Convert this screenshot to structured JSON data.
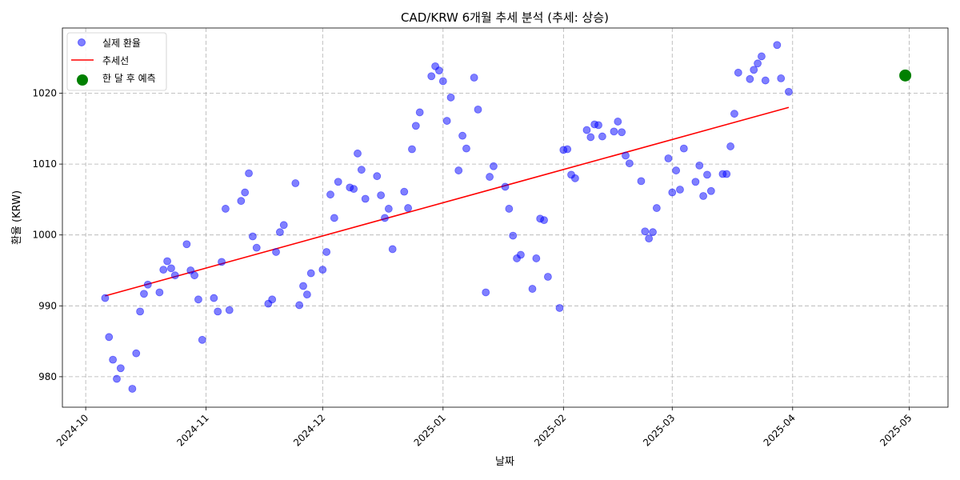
{
  "chart_data": {
    "type": "scatter",
    "title": "CAD/KRW 6개월 추세 분석 (추세: 상승)",
    "xlabel": "날짜",
    "ylabel": "환율 (KRW)",
    "xlim": [
      "2024-09-25",
      "2025-05-11"
    ],
    "ylim": [
      975.7,
      1029.2
    ],
    "x_ticks": [
      "2024-10",
      "2024-11",
      "2024-12",
      "2025-01",
      "2025-02",
      "2025-03",
      "2025-04",
      "2025-05"
    ],
    "x_tick_dates": [
      "2024-10-01",
      "2024-11-01",
      "2024-12-01",
      "2025-01-01",
      "2025-02-01",
      "2025-03-01",
      "2025-04-01",
      "2025-05-01"
    ],
    "y_ticks": [
      980,
      990,
      1000,
      1010,
      1020
    ],
    "grid": true,
    "legend_position": "top-left",
    "colors": {
      "actual": "#0000ff",
      "trend": "#ff0000",
      "forecast": "#008000"
    },
    "series": [
      {
        "name": "실제 환율",
        "kind": "scatter",
        "points": [
          [
            "2024-10-06",
            991.1
          ],
          [
            "2024-10-07",
            985.6
          ],
          [
            "2024-10-08",
            982.4
          ],
          [
            "2024-10-09",
            979.7
          ],
          [
            "2024-10-10",
            981.2
          ],
          [
            "2024-10-13",
            978.3
          ],
          [
            "2024-10-14",
            983.3
          ],
          [
            "2024-10-15",
            989.2
          ],
          [
            "2024-10-16",
            991.7
          ],
          [
            "2024-10-17",
            993.0
          ],
          [
            "2024-10-20",
            991.9
          ],
          [
            "2024-10-21",
            995.1
          ],
          [
            "2024-10-22",
            996.3
          ],
          [
            "2024-10-23",
            995.3
          ],
          [
            "2024-10-24",
            994.3
          ],
          [
            "2024-10-27",
            998.7
          ],
          [
            "2024-10-28",
            995.0
          ],
          [
            "2024-10-29",
            994.3
          ],
          [
            "2024-10-30",
            990.9
          ],
          [
            "2024-10-31",
            985.2
          ],
          [
            "2024-11-03",
            991.1
          ],
          [
            "2024-11-04",
            989.2
          ],
          [
            "2024-11-05",
            996.2
          ],
          [
            "2024-11-06",
            1003.7
          ],
          [
            "2024-11-07",
            989.4
          ],
          [
            "2024-11-10",
            1004.8
          ],
          [
            "2024-11-11",
            1006.0
          ],
          [
            "2024-11-12",
            1008.7
          ],
          [
            "2024-11-13",
            999.8
          ],
          [
            "2024-11-14",
            998.2
          ],
          [
            "2024-11-17",
            990.3
          ],
          [
            "2024-11-18",
            990.9
          ],
          [
            "2024-11-19",
            997.6
          ],
          [
            "2024-11-20",
            1000.4
          ],
          [
            "2024-11-21",
            1001.4
          ],
          [
            "2024-11-24",
            1007.3
          ],
          [
            "2024-11-25",
            990.1
          ],
          [
            "2024-11-26",
            992.8
          ],
          [
            "2024-11-27",
            991.6
          ],
          [
            "2024-11-28",
            994.6
          ],
          [
            "2024-12-01",
            995.1
          ],
          [
            "2024-12-02",
            997.6
          ],
          [
            "2024-12-03",
            1005.7
          ],
          [
            "2024-12-04",
            1002.4
          ],
          [
            "2024-12-05",
            1007.5
          ],
          [
            "2024-12-08",
            1006.7
          ],
          [
            "2024-12-09",
            1006.5
          ],
          [
            "2024-12-10",
            1011.5
          ],
          [
            "2024-12-11",
            1009.2
          ],
          [
            "2024-12-12",
            1005.1
          ],
          [
            "2024-12-15",
            1008.3
          ],
          [
            "2024-12-16",
            1005.6
          ],
          [
            "2024-12-17",
            1002.4
          ],
          [
            "2024-12-18",
            1003.7
          ],
          [
            "2024-12-19",
            998.0
          ],
          [
            "2024-12-22",
            1006.1
          ],
          [
            "2024-12-23",
            1003.8
          ],
          [
            "2024-12-24",
            1012.1
          ],
          [
            "2024-12-25",
            1015.4
          ],
          [
            "2024-12-26",
            1017.3
          ],
          [
            "2024-12-29",
            1022.4
          ],
          [
            "2024-12-30",
            1023.8
          ],
          [
            "2024-12-31",
            1023.2
          ],
          [
            "2025-01-01",
            1021.7
          ],
          [
            "2025-01-02",
            1016.1
          ],
          [
            "2025-01-03",
            1019.4
          ],
          [
            "2025-01-05",
            1009.1
          ],
          [
            "2025-01-06",
            1014.0
          ],
          [
            "2025-01-07",
            1012.2
          ],
          [
            "2025-01-09",
            1022.2
          ],
          [
            "2025-01-10",
            1017.7
          ],
          [
            "2025-01-12",
            991.9
          ],
          [
            "2025-01-13",
            1008.2
          ],
          [
            "2025-01-14",
            1009.7
          ],
          [
            "2025-01-17",
            1006.8
          ],
          [
            "2025-01-18",
            1003.7
          ],
          [
            "2025-01-19",
            999.9
          ],
          [
            "2025-01-20",
            996.7
          ],
          [
            "2025-01-21",
            997.2
          ],
          [
            "2025-01-24",
            992.4
          ],
          [
            "2025-01-25",
            996.7
          ],
          [
            "2025-01-26",
            1002.3
          ],
          [
            "2025-01-27",
            1002.1
          ],
          [
            "2025-01-28",
            994.1
          ],
          [
            "2025-01-31",
            989.7
          ],
          [
            "2025-02-01",
            1012.0
          ],
          [
            "2025-02-02",
            1012.1
          ],
          [
            "2025-02-03",
            1008.5
          ],
          [
            "2025-02-04",
            1008.0
          ],
          [
            "2025-02-07",
            1014.8
          ],
          [
            "2025-02-08",
            1013.8
          ],
          [
            "2025-02-09",
            1015.6
          ],
          [
            "2025-02-10",
            1015.5
          ],
          [
            "2025-02-11",
            1013.9
          ],
          [
            "2025-02-14",
            1014.6
          ],
          [
            "2025-02-15",
            1016.0
          ],
          [
            "2025-02-16",
            1014.5
          ],
          [
            "2025-02-17",
            1011.2
          ],
          [
            "2025-02-18",
            1010.1
          ],
          [
            "2025-02-21",
            1007.6
          ],
          [
            "2025-02-22",
            1000.5
          ],
          [
            "2025-02-23",
            999.5
          ],
          [
            "2025-02-24",
            1000.4
          ],
          [
            "2025-02-25",
            1003.8
          ],
          [
            "2025-02-28",
            1010.8
          ],
          [
            "2025-03-01",
            1006.0
          ],
          [
            "2025-03-02",
            1009.1
          ],
          [
            "2025-03-03",
            1006.4
          ],
          [
            "2025-03-04",
            1012.2
          ],
          [
            "2025-03-07",
            1007.5
          ],
          [
            "2025-03-08",
            1009.8
          ],
          [
            "2025-03-09",
            1005.5
          ],
          [
            "2025-03-10",
            1008.5
          ],
          [
            "2025-03-11",
            1006.2
          ],
          [
            "2025-03-14",
            1008.6
          ],
          [
            "2025-03-15",
            1008.6
          ],
          [
            "2025-03-16",
            1012.5
          ],
          [
            "2025-03-17",
            1017.1
          ],
          [
            "2025-03-18",
            1022.9
          ],
          [
            "2025-03-21",
            1022.0
          ],
          [
            "2025-03-22",
            1023.3
          ],
          [
            "2025-03-23",
            1024.2
          ],
          [
            "2025-03-24",
            1025.2
          ],
          [
            "2025-03-25",
            1021.8
          ],
          [
            "2025-03-28",
            1026.8
          ],
          [
            "2025-03-29",
            1022.1
          ],
          [
            "2025-03-31",
            1020.2
          ]
        ]
      },
      {
        "name": "추세선",
        "kind": "line",
        "points": [
          [
            "2024-10-06",
            991.4
          ],
          [
            "2025-03-31",
            1018.0
          ]
        ]
      },
      {
        "name": "한 달 후 예측",
        "kind": "scatter-large",
        "points": [
          [
            "2025-04-30",
            1022.5
          ]
        ]
      }
    ]
  }
}
